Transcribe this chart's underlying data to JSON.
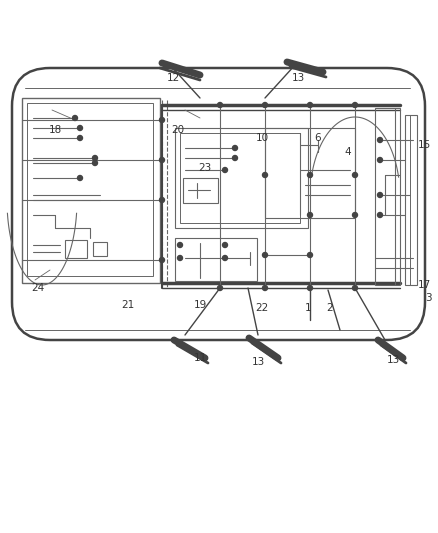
{
  "bg_color": "#ffffff",
  "line_color": "#666666",
  "dark_color": "#444444",
  "label_color": "#333333",
  "fig_width": 4.38,
  "fig_height": 5.33,
  "dpi": 100
}
